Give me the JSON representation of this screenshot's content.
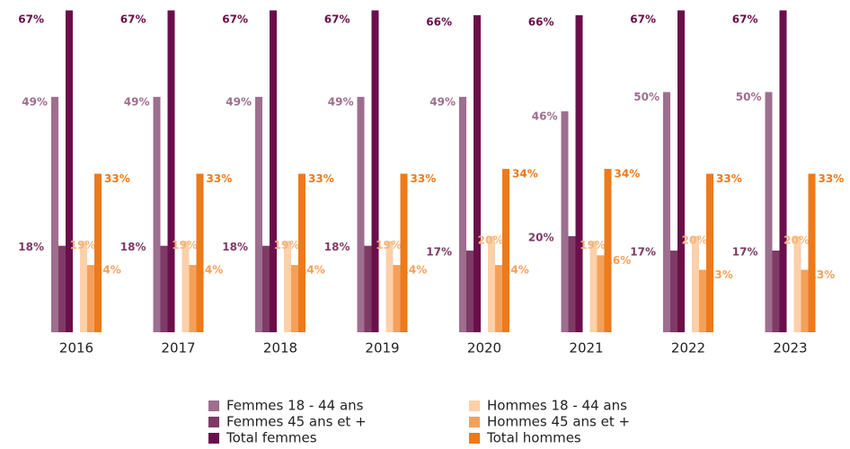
{
  "chart_data": {
    "type": "bar",
    "categories": [
      "2016",
      "2017",
      "2018",
      "2019",
      "2020",
      "2021",
      "2022",
      "2023"
    ],
    "series": [
      {
        "name": "Femmes 18 - 44 ans",
        "color": "#9e6e8e",
        "values": [
          49,
          49,
          49,
          49,
          49,
          46,
          50,
          50
        ],
        "value_labels": [
          "49%",
          "49%",
          "49%",
          "49%",
          "49%",
          "46%",
          "50%",
          "50%"
        ]
      },
      {
        "name": "Femmes 45 ans et +",
        "color": "#7f3a66",
        "values": [
          18,
          18,
          18,
          18,
          17,
          20,
          17,
          17
        ],
        "value_labels": [
          "18%",
          "18%",
          "18%",
          "18%",
          "17%",
          "20%",
          "17%",
          "17%"
        ]
      },
      {
        "name": "Total femmes",
        "color": "#6b0f4a",
        "values": [
          67,
          67,
          67,
          67,
          66,
          66,
          67,
          67
        ],
        "value_labels": [
          "67%",
          "67%",
          "67%",
          "67%",
          "66%",
          "66%",
          "67%",
          "67%"
        ]
      },
      {
        "name": "Hommes 18 - 44 ans",
        "color": "#fdd0a8",
        "values": [
          19,
          19,
          19,
          19,
          20,
          19,
          20,
          20
        ],
        "value_labels": [
          "19%",
          "19%",
          "19%",
          "19%",
          "20%",
          "19%",
          "20%",
          "20%"
        ]
      },
      {
        "name": "Hommes 45 ans et +",
        "color": "#f5a05a",
        "values": [
          14,
          14,
          14,
          14,
          14,
          16,
          13,
          13
        ],
        "value_labels": [
          "14%",
          "14%",
          "14%",
          "14%",
          "14%",
          "16%",
          "13%",
          "13%"
        ]
      },
      {
        "name": "Total hommes",
        "color": "#ee7a1a",
        "values": [
          33,
          33,
          33,
          33,
          34,
          34,
          33,
          33
        ],
        "value_labels": [
          "33%",
          "33%",
          "33%",
          "33%",
          "34%",
          "34%",
          "33%",
          "33%"
        ]
      }
    ]
  }
}
